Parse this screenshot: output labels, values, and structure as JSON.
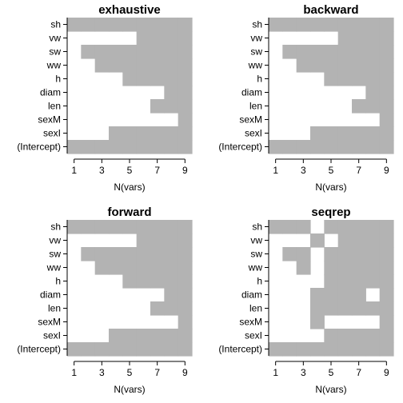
{
  "chart_data": {
    "type": "heatmap",
    "xlabel": "N(vars)",
    "x_ticks": [
      1,
      3,
      5,
      7,
      9
    ],
    "x_range": [
      1,
      9
    ],
    "variables": [
      "sh",
      "vw",
      "sw",
      "ww",
      "h",
      "diam",
      "len",
      "sexM",
      "sexI",
      "(Intercept)"
    ],
    "colors": {
      "included": "#b3b3b3",
      "excluded": "#ffffff"
    },
    "panels": [
      {
        "title": "exhaustive",
        "included": [
          [
            1,
            2,
            3,
            4,
            5,
            6,
            7,
            8,
            9
          ],
          [
            6,
            7,
            8,
            9
          ],
          [
            2,
            3,
            4,
            5,
            6,
            7,
            8,
            9
          ],
          [
            3,
            4,
            5,
            6,
            7,
            8,
            9
          ],
          [
            5,
            6,
            7,
            8,
            9
          ],
          [
            8,
            9
          ],
          [
            7,
            8,
            9
          ],
          [
            9
          ],
          [
            4,
            5,
            6,
            7,
            8,
            9
          ],
          [
            1,
            2,
            3,
            4,
            5,
            6,
            7,
            8,
            9
          ]
        ]
      },
      {
        "title": "backward",
        "included": [
          [
            1,
            2,
            3,
            4,
            5,
            6,
            7,
            8,
            9
          ],
          [
            6,
            7,
            8,
            9
          ],
          [
            2,
            3,
            4,
            5,
            6,
            7,
            8,
            9
          ],
          [
            3,
            4,
            5,
            6,
            7,
            8,
            9
          ],
          [
            5,
            6,
            7,
            8,
            9
          ],
          [
            8,
            9
          ],
          [
            7,
            8,
            9
          ],
          [
            9
          ],
          [
            4,
            5,
            6,
            7,
            8,
            9
          ],
          [
            1,
            2,
            3,
            4,
            5,
            6,
            7,
            8,
            9
          ]
        ]
      },
      {
        "title": "forward",
        "included": [
          [
            1,
            2,
            3,
            4,
            5,
            6,
            7,
            8,
            9
          ],
          [
            6,
            7,
            8,
            9
          ],
          [
            2,
            3,
            4,
            5,
            6,
            7,
            8,
            9
          ],
          [
            3,
            4,
            5,
            6,
            7,
            8,
            9
          ],
          [
            5,
            6,
            7,
            8,
            9
          ],
          [
            8,
            9
          ],
          [
            7,
            8,
            9
          ],
          [
            9
          ],
          [
            4,
            5,
            6,
            7,
            8,
            9
          ],
          [
            1,
            2,
            3,
            4,
            5,
            6,
            7,
            8,
            9
          ]
        ]
      },
      {
        "title": "seqrep",
        "included": [
          [
            1,
            2,
            3,
            5,
            6,
            7,
            8,
            9
          ],
          [
            4,
            6,
            7,
            8,
            9
          ],
          [
            2,
            3,
            5,
            6,
            7,
            8,
            9
          ],
          [
            3,
            5,
            6,
            7,
            8,
            9
          ],
          [
            5,
            6,
            7,
            8,
            9
          ],
          [
            4,
            5,
            6,
            7,
            9
          ],
          [
            4,
            5,
            6,
            7,
            8,
            9
          ],
          [
            4,
            9
          ],
          [
            5,
            6,
            7,
            8,
            9
          ],
          [
            1,
            2,
            3,
            4,
            5,
            6,
            7,
            8,
            9
          ]
        ]
      }
    ]
  }
}
